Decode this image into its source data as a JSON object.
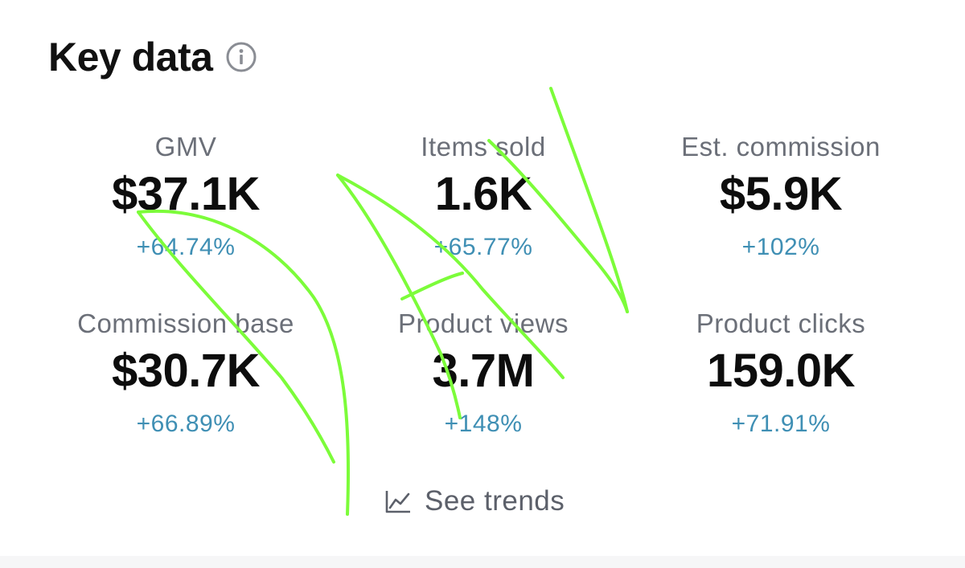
{
  "header": {
    "title": "Key data",
    "info_icon": "info-circle-icon"
  },
  "metrics": [
    {
      "label": "GMV",
      "value": "$37.1K",
      "change": "+64.74%"
    },
    {
      "label": "Items sold",
      "value": "1.6K",
      "change": "+65.77%"
    },
    {
      "label": "Est. commission",
      "value": "$5.9K",
      "change": "+102%"
    },
    {
      "label": "Commission base",
      "value": "$30.7K",
      "change": "+66.89%"
    },
    {
      "label": "Product views",
      "value": "3.7M",
      "change": "+148%"
    },
    {
      "label": "Product clicks",
      "value": "159.0K",
      "change": "+71.91%"
    }
  ],
  "trends": {
    "label": "See trends",
    "icon": "line-chart-icon"
  },
  "colors": {
    "title": "#111111",
    "label": "#6b6f78",
    "value": "#0d0d0d",
    "change_positive": "#3f8fb4",
    "annotation_stroke": "#7CFC3A"
  }
}
